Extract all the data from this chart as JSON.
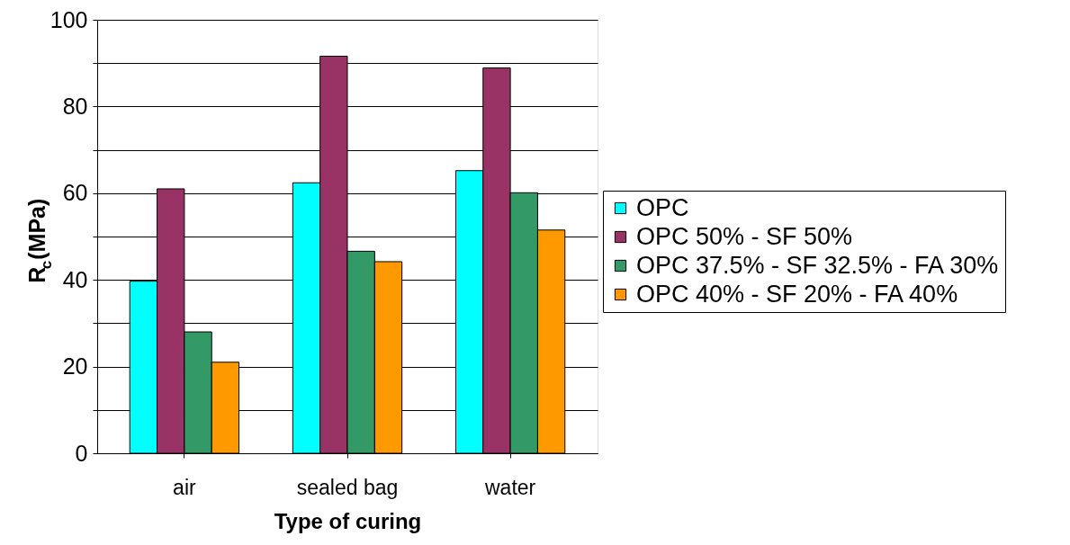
{
  "chart_data": {
    "type": "bar",
    "xlabel": "Type of curing",
    "ylabel": "R$_{c}$(MPa)",
    "categories": [
      "air",
      "sealed bag",
      "water"
    ],
    "series": [
      {
        "name": "OPC",
        "color": "#00ffff",
        "values": [
          39.7,
          62.4,
          65.2
        ]
      },
      {
        "name": "OPC 50% - SF 50%",
        "color": "#993366",
        "values": [
          61.0,
          91.6,
          88.9
        ]
      },
      {
        "name": "OPC 37.5% - SF 32.5% - FA 30%",
        "color": "#339966",
        "values": [
          28.0,
          46.6,
          60.1
        ]
      },
      {
        "name": "OPC 40% - SF 20% - FA 40%",
        "color": "#ff9900",
        "values": [
          21.0,
          44.2,
          51.5
        ]
      }
    ],
    "ylim": [
      0,
      100
    ],
    "yticks": [
      0,
      {
        "value": 10,
        "label": null
      },
      20,
      {
        "value": 30,
        "label": null
      },
      40,
      {
        "value": 50,
        "label": null
      },
      60,
      {
        "value": 70,
        "label": null
      },
      80,
      {
        "value": 90,
        "label": null
      },
      100
    ],
    "grid": "y",
    "legend": "right"
  }
}
